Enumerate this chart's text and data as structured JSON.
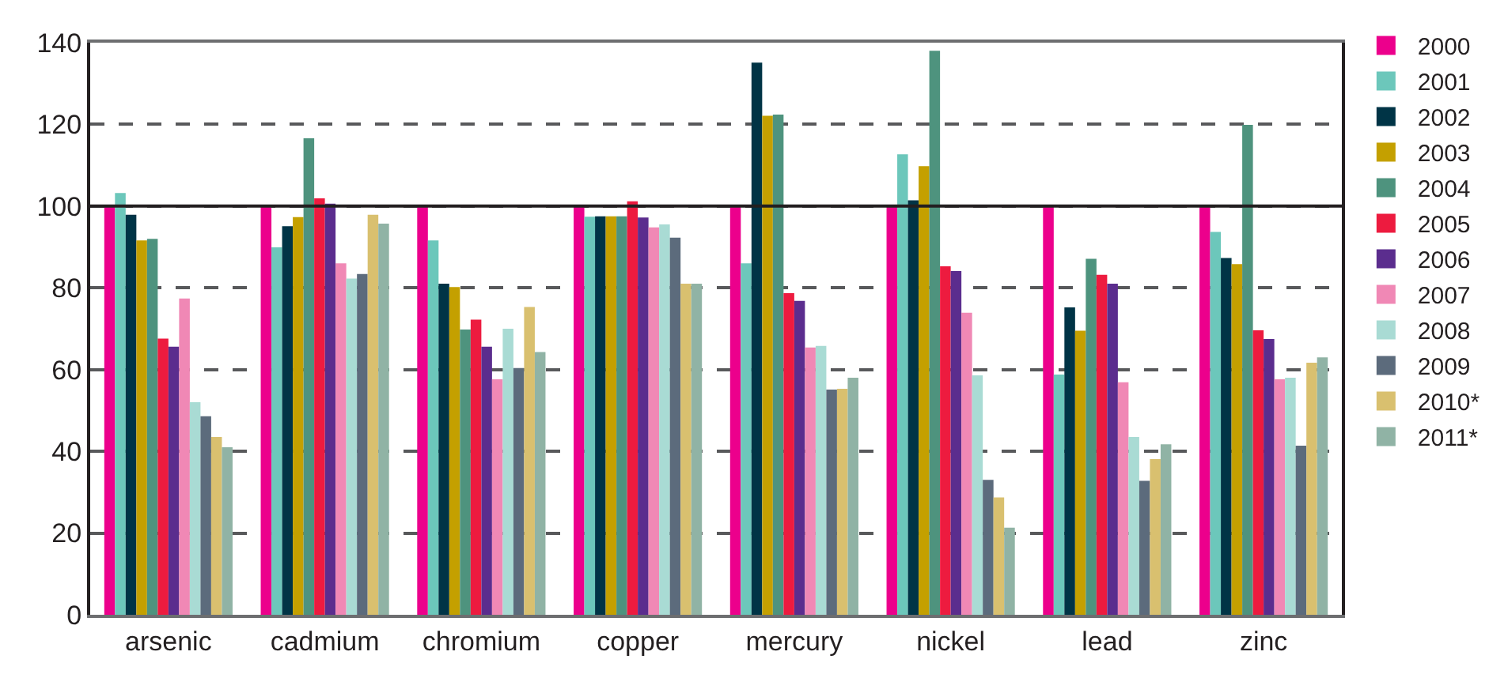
{
  "chart_data": {
    "type": "bar",
    "categories": [
      "arsenic",
      "cadmium",
      "chromium",
      "copper",
      "mercury",
      "nickel",
      "lead",
      "zinc"
    ],
    "series": [
      {
        "name": "2000",
        "color": "#ec008c",
        "values": [
          100,
          100,
          100,
          100,
          100,
          100,
          100,
          100
        ]
      },
      {
        "name": "2001",
        "color": "#6cc7bb",
        "values": [
          103.2,
          89.9,
          91.6,
          97.4,
          86.0,
          112.7,
          58.8,
          93.7
        ]
      },
      {
        "name": "2002",
        "color": "#003446",
        "values": [
          97.9,
          95.1,
          81.0,
          97.5,
          135.1,
          101.4,
          75.2,
          87.3
        ]
      },
      {
        "name": "2003",
        "color": "#c4a000",
        "values": [
          91.6,
          97.3,
          80.2,
          97.5,
          122.1,
          109.8,
          69.5,
          85.8
        ]
      },
      {
        "name": "2004",
        "color": "#4e937e",
        "values": [
          92.0,
          116.6,
          69.8,
          97.5,
          122.4,
          138.0,
          87.1,
          119.9
        ]
      },
      {
        "name": "2005",
        "color": "#ed1b3f",
        "values": [
          67.6,
          101.9,
          72.2,
          101.2,
          78.7,
          85.3,
          83.2,
          69.6
        ]
      },
      {
        "name": "2006",
        "color": "#5b2d8e",
        "values": [
          65.6,
          100.6,
          65.6,
          97.2,
          76.8,
          84.1,
          81.0,
          67.5
        ]
      },
      {
        "name": "2007",
        "color": "#f088b5",
        "values": [
          77.4,
          86.0,
          57.6,
          94.8,
          65.4,
          73.9,
          56.9,
          57.6
        ]
      },
      {
        "name": "2008",
        "color": "#a9dbd4",
        "values": [
          52.0,
          82.3,
          70.0,
          95.5,
          65.8,
          58.6,
          43.5,
          58.0
        ]
      },
      {
        "name": "2009",
        "color": "#5c6b7c",
        "values": [
          48.6,
          83.4,
          60.4,
          92.3,
          55.1,
          33.0,
          32.8,
          41.4
        ]
      },
      {
        "name": "2010*",
        "color": "#d9c06f",
        "values": [
          43.5,
          97.9,
          75.3,
          81.0,
          55.3,
          28.7,
          38.1,
          61.7
        ]
      },
      {
        "name": "2011*",
        "color": "#90b3a5",
        "values": [
          41.0,
          95.7,
          64.3,
          81.0,
          58.0,
          21.3,
          41.7,
          63.0
        ]
      }
    ],
    "ylim": [
      0,
      140
    ],
    "yticks": [
      0,
      20,
      40,
      60,
      80,
      100,
      120,
      140
    ],
    "grid": "y",
    "legend": "right",
    "ref_lines": [
      {
        "axis": "y",
        "value": 100,
        "color": "#231f20",
        "line_style": "solid"
      }
    ]
  }
}
